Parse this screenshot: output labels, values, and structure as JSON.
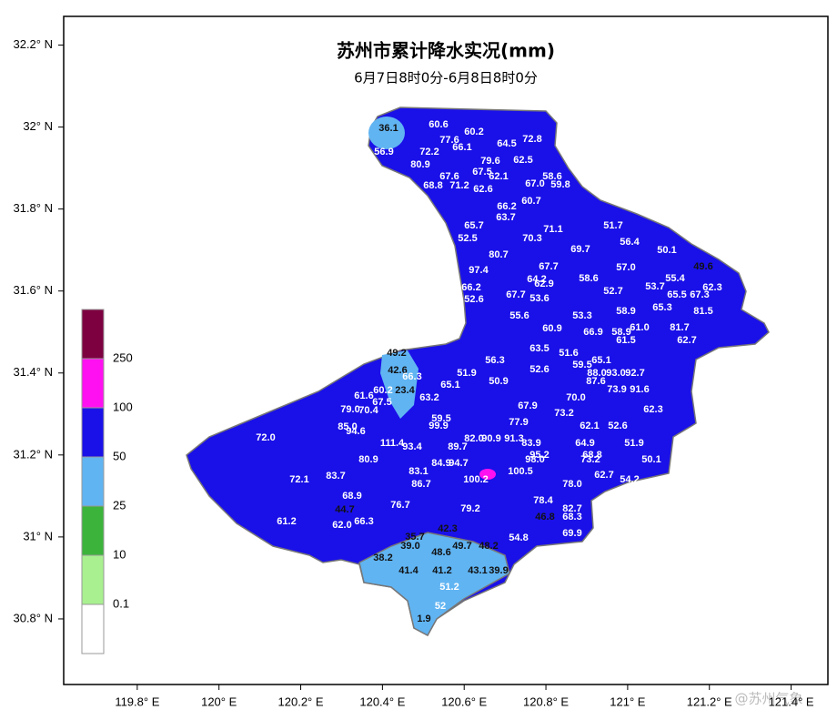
{
  "title": "苏州市累计降水实况(mm)",
  "subtitle": "6月7日8时0分-6月8日8时0分",
  "lonlim": [
    119.62,
    121.49
  ],
  "latlim": [
    30.64,
    32.27
  ],
  "lon_ticks": [
    {
      "value": 119.8,
      "label": "119.8° E"
    },
    {
      "value": 120,
      "label": "120° E"
    },
    {
      "value": 120.2,
      "label": "120.2° E"
    },
    {
      "value": 120.4,
      "label": "120.4° E"
    },
    {
      "value": 120.6,
      "label": "120.6° E"
    },
    {
      "value": 120.8,
      "label": "120.8° E"
    },
    {
      "value": 121,
      "label": "121° E"
    },
    {
      "value": 121.2,
      "label": "121.2° E"
    },
    {
      "value": 121.4,
      "label": "121.4° E"
    }
  ],
  "lat_ticks": [
    {
      "value": 32.2,
      "label": "32.2° N"
    },
    {
      "value": 32,
      "label": "32° N"
    },
    {
      "value": 31.8,
      "label": "31.8° N"
    },
    {
      "value": 31.6,
      "label": "31.6° N"
    },
    {
      "value": 31.4,
      "label": "31.4° N"
    },
    {
      "value": 31.2,
      "label": "31.2° N"
    },
    {
      "value": 31,
      "label": "31° N"
    },
    {
      "value": 30.8,
      "label": "30.8° N"
    }
  ],
  "legend": {
    "colors": [
      "#7d0040",
      "#ff10f0",
      "#1a10e8",
      "#60b4f2",
      "#3cb43c",
      "#a8f090",
      "#ffffff"
    ],
    "labels": [
      "250",
      "100",
      "50",
      "25",
      "10",
      "0.1"
    ]
  },
  "stations": [
    "36.1",
    "60.6",
    "60.2",
    "56.9",
    "77.6",
    "66.1",
    "72.2",
    "64.5",
    "72.8",
    "80.9",
    "79.6",
    "62.5",
    "67.6",
    "67.5",
    "62.1",
    "58.6",
    "68.8",
    "71.2",
    "62.6",
    "67.0",
    "59.8",
    "60.7",
    "66.2",
    "63.7",
    "65.7",
    "71.1",
    "70.3",
    "51.7",
    "52.5",
    "56.4",
    "69.7",
    "80.7",
    "50.1",
    "49.6",
    "67.7",
    "97.4",
    "57.0",
    "64.2",
    "58.6",
    "55.4",
    "62.9",
    "66.2",
    "52.7",
    "53.7",
    "65.5",
    "67.3",
    "62.3",
    "67.7",
    "53.6",
    "52.6",
    "65.3",
    "81.5",
    "58.9",
    "53.3",
    "55.6",
    "60.9",
    "66.9",
    "58.9",
    "61.0",
    "81.7",
    "61.5",
    "62.7",
    "63.5",
    "49.2",
    "51.6",
    "65.1",
    "56.3",
    "52.6",
    "59.5",
    "42.6",
    "88.0",
    "93.0",
    "92.7",
    "66.3",
    "51.9",
    "50.9",
    "87.6",
    "23.4",
    "60.2",
    "65.1",
    "73.9",
    "91.6",
    "61.6",
    "63.2",
    "70.0",
    "67.5",
    "67.9",
    "79.0",
    "70.4",
    "73.2",
    "62.3",
    "59.5",
    "77.9",
    "62.1",
    "52.6",
    "85.0",
    "94.6",
    "99.9",
    "72.0",
    "111.4",
    "93.4",
    "82.0",
    "90.9",
    "91.3",
    "83.9",
    "64.9",
    "51.9",
    "89.7",
    "95.2",
    "80.9",
    "68.8",
    "84.9",
    "94.7",
    "98.0",
    "73.2",
    "50.1",
    "83.1",
    "100.5",
    "72.1",
    "83.7",
    "100.2",
    "86.7",
    "78.0",
    "62.7",
    "54.2",
    "68.9",
    "76.7",
    "78.4",
    "79.2",
    "44.7",
    "82.7",
    "61.2",
    "62.0",
    "66.3",
    "46.8",
    "68.3",
    "42.3",
    "48.6",
    "35.7",
    "39.0",
    "54.8",
    "69.9",
    "49.7",
    "48.2",
    "38.2",
    "41.4",
    "41.2",
    "43.1",
    "39.9",
    "51.2",
    "52",
    "1.9"
  ],
  "watermark": "@苏州气象"
}
